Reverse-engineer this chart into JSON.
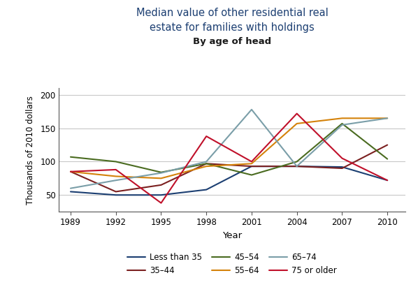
{
  "title_line1": "Median value of other residential real",
  "title_line2": "estate for families with holdings",
  "subtitle": "By age of head",
  "xlabel": "Year",
  "ylabel": "Thousands of 2010 dollars",
  "years": [
    1989,
    1992,
    1995,
    1998,
    2001,
    2004,
    2007,
    2010
  ],
  "series": [
    {
      "label": "Less than 35",
      "values": [
        55,
        50,
        50,
        58,
        93,
        93,
        92,
        72
      ],
      "color": "#1c3f72"
    },
    {
      "label": "35–44",
      "values": [
        85,
        55,
        65,
        97,
        93,
        93,
        90,
        125
      ],
      "color": "#7b2020"
    },
    {
      "label": "45–54",
      "values": [
        107,
        100,
        84,
        97,
        80,
        100,
        157,
        104
      ],
      "color": "#4a6b20"
    },
    {
      "label": "55–64",
      "values": [
        85,
        78,
        75,
        93,
        97,
        157,
        165,
        165
      ],
      "color": "#d4820a"
    },
    {
      "label": "65–74",
      "values": [
        60,
        72,
        83,
        100,
        178,
        93,
        155,
        165
      ],
      "color": "#7a9ea8"
    },
    {
      "label": "75 or older",
      "values": [
        85,
        88,
        38,
        138,
        100,
        172,
        105,
        72
      ],
      "color": "#c0102a"
    }
  ],
  "ylim": [
    25,
    210
  ],
  "yticks": [
    50,
    100,
    150,
    200
  ],
  "xticks": [
    1989,
    1992,
    1995,
    1998,
    2001,
    2004,
    2007,
    2010
  ],
  "title_color": "#1c3f72",
  "subtitle_color": "#1a1a1a",
  "background_color": "#ffffff",
  "grid_color": "#c8c8c8",
  "figsize": [
    5.98,
    4.21
  ],
  "dpi": 100
}
